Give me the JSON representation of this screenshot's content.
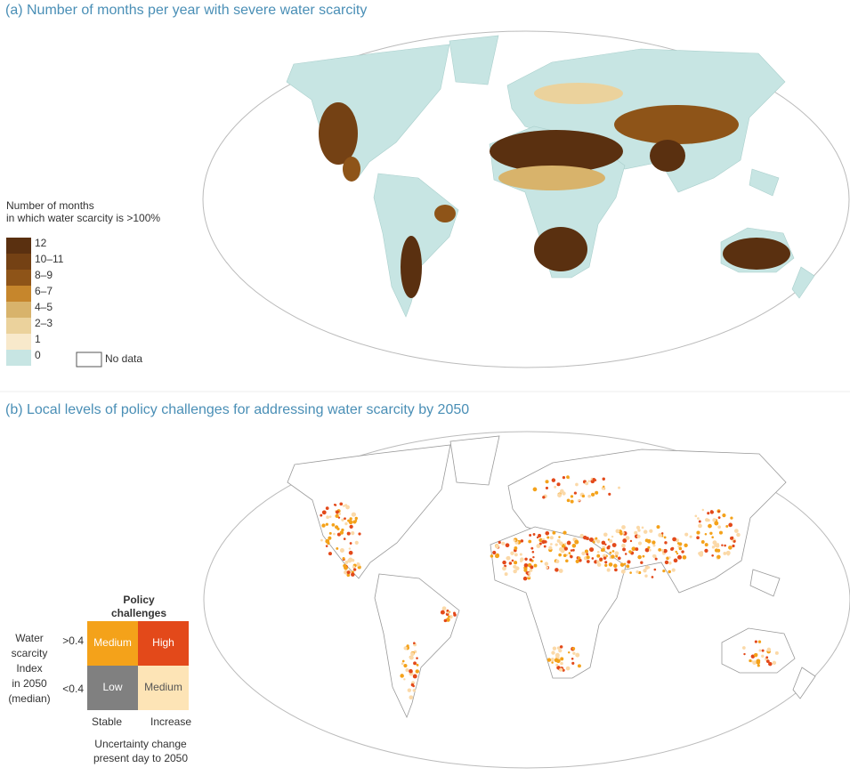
{
  "panels": [
    {
      "title": "(a) Number of months per year with severe water scarcity",
      "legend": {
        "title": [
          "Number of months",
          "in which water scarcity is >100%"
        ],
        "items": [
          {
            "label": "12",
            "color": "#5a3010"
          },
          {
            "label": "10–11",
            "color": "#744114"
          },
          {
            "label": "8–9",
            "color": "#8e5418"
          },
          {
            "label": "6–7",
            "color": "#c6862c"
          },
          {
            "label": "4–5",
            "color": "#d8b36b"
          },
          {
            "label": "2–3",
            "color": "#ebd29c"
          },
          {
            "label": "1",
            "color": "#f8e9cb"
          },
          {
            "label": "0",
            "color": "#c7e5e3"
          }
        ],
        "no_data": "No data"
      }
    },
    {
      "title": "(b) Local levels of policy challenges for addressing water scarcity by 2050",
      "legend": {
        "title": [
          "Policy",
          "challenges"
        ],
        "y_label": [
          "Water",
          "scarcity",
          "Index",
          "in 2050",
          "(median)"
        ],
        "rows": [
          ">0.4",
          "<0.4"
        ],
        "columns": [
          "Stable",
          "Increase"
        ],
        "cells": [
          [
            {
              "label": "Medium",
              "color": "#f4a21a"
            },
            {
              "label": "High",
              "color": "#e3491a"
            }
          ],
          [
            {
              "label": "Low",
              "color": "#808080"
            },
            {
              "label": "Medium",
              "color": "#fde4b6"
            }
          ]
        ],
        "x_label": [
          "Uncertainty change",
          "present day to 2050"
        ]
      }
    }
  ]
}
